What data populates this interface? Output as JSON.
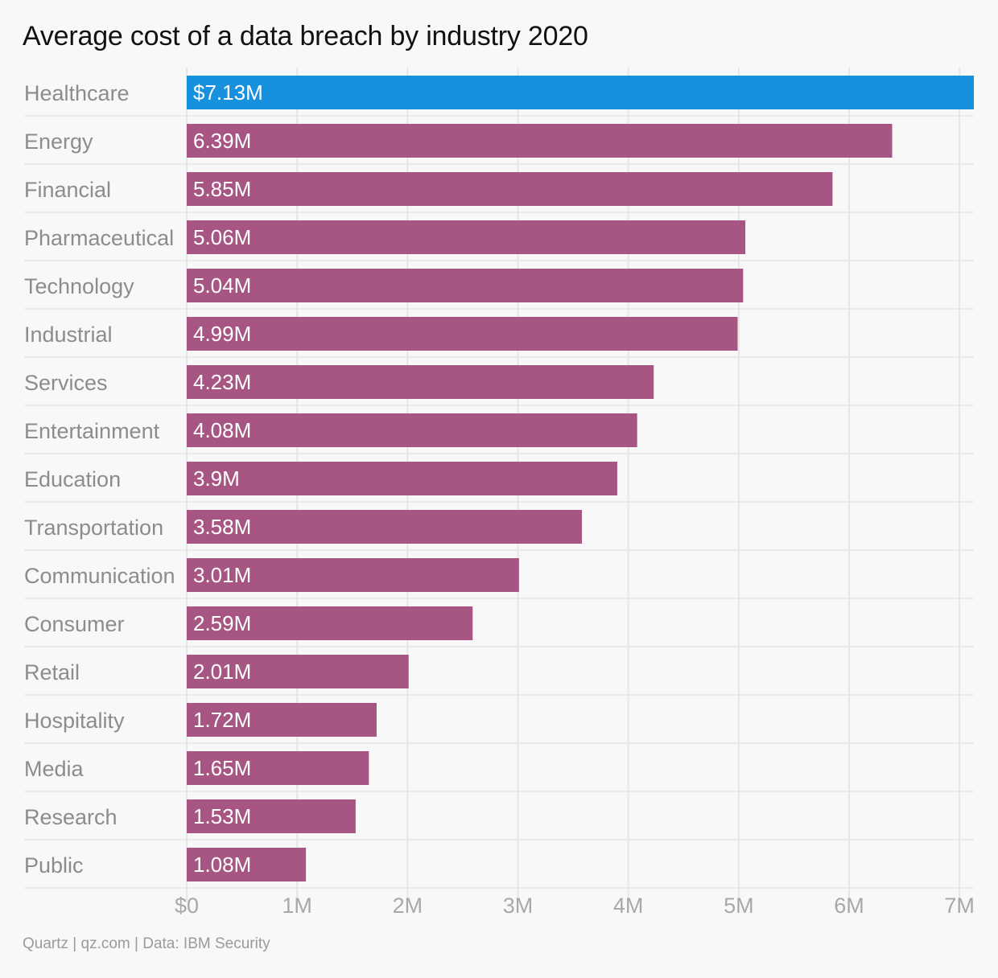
{
  "chart_data": {
    "type": "bar",
    "orientation": "horizontal",
    "title": "Average cost of a data breach by industry 2020",
    "categories": [
      "Healthcare",
      "Energy",
      "Financial",
      "Pharmaceutical",
      "Technology",
      "Industrial",
      "Services",
      "Entertainment",
      "Education",
      "Transportation",
      "Communication",
      "Consumer",
      "Retail",
      "Hospitality",
      "Media",
      "Research",
      "Public"
    ],
    "values": [
      7.13,
      6.39,
      5.85,
      5.06,
      5.04,
      4.99,
      4.23,
      4.08,
      3.9,
      3.58,
      3.01,
      2.59,
      2.01,
      1.72,
      1.65,
      1.53,
      1.08
    ],
    "value_labels": [
      "$7.13M",
      "6.39M",
      "5.85M",
      "5.06M",
      "5.04M",
      "4.99M",
      "4.23M",
      "4.08M",
      "3.9M",
      "3.58M",
      "3.01M",
      "2.59M",
      "2.01M",
      "1.72M",
      "1.65M",
      "1.53M",
      "1.08M"
    ],
    "xlabel": "",
    "ylabel": "",
    "xlim": [
      0,
      7.13
    ],
    "x_ticks": [
      0,
      1,
      2,
      3,
      4,
      5,
      6,
      7
    ],
    "x_tick_labels": [
      "$0",
      "1M",
      "2M",
      "3M",
      "4M",
      "5M",
      "6M",
      "7M"
    ],
    "grid": true,
    "legend": "none",
    "highlight_index": 0
  },
  "colors": {
    "highlight": "#1790dd",
    "bar": "#a75684",
    "grid": "#e6e6e6",
    "background": "#f8f8f8"
  },
  "footer": {
    "source": "Quartz | qz.com | Data: IBM Security"
  }
}
